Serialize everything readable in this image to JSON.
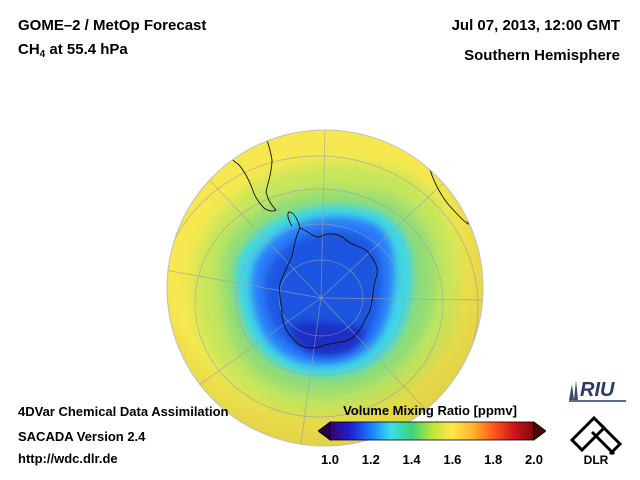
{
  "header": {
    "title_main": "GOME–2 / MetOp Forecast",
    "title_species": "CH",
    "title_species_sub": "4",
    "title_level": " at 55.4 hPa",
    "date": "Jul 07, 2013, 12:00 GMT",
    "region": "Southern Hemisphere"
  },
  "footer": {
    "line1": "4DVar Chemical Data Assimilation",
    "line2": "SACADA Version 2.4",
    "line3": "http://wdc.dlr.de"
  },
  "colorbar": {
    "title": "Volume Mixing Ratio [ppmv]",
    "ticks": [
      "1.0",
      "1.2",
      "1.4",
      "1.6",
      "1.8",
      "2.0"
    ],
    "min": 1.0,
    "max": 2.0,
    "colors": [
      "#3a006e",
      "#1f1fd6",
      "#1a7cff",
      "#39e0e8",
      "#3fd17a",
      "#b9e639",
      "#ffe84a",
      "#ffb52e",
      "#ff5a1a",
      "#d4141a",
      "#7a0a0a"
    ]
  },
  "logos": {
    "riu_text": "RIU",
    "dlr_text": "DLR"
  },
  "map": {
    "projection": "orthographic south polar",
    "field": "CH4 volume mixing ratio",
    "background_color": "#f7e84f",
    "polar_vortex_color": "#1f56e0"
  }
}
